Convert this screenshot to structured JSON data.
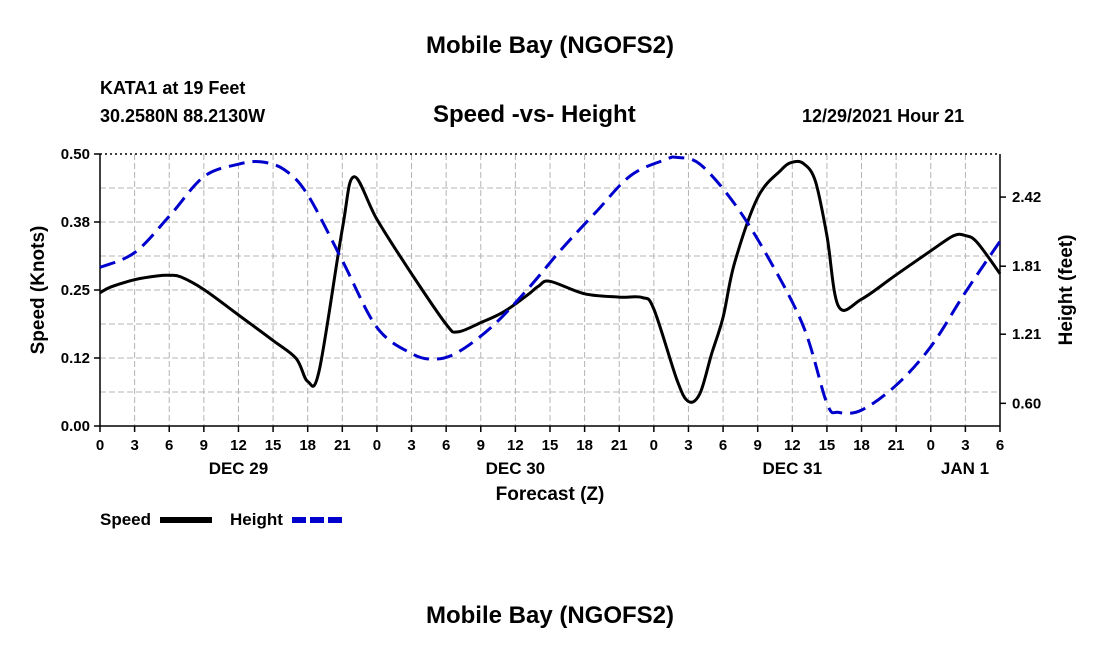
{
  "page": {
    "title": "Mobile Bay (NGOFS2)",
    "bottom_title": "Mobile Bay (NGOFS2)",
    "station": "KATA1 at 19 Feet",
    "coords": "30.2580N  88.2130W",
    "subtitle": "Speed -vs- Height",
    "datetime": "12/29/2021 Hour 21"
  },
  "colors": {
    "speed": "#000000",
    "height": "#0000cc",
    "grid": "#b4b4b4"
  },
  "chart_data": {
    "type": "line",
    "title": "Speed -vs- Height",
    "xlabel": "Forecast (Z)",
    "ylabel": "Speed (Knots)",
    "y2label": "Height (feet)",
    "xlim": [
      0,
      78
    ],
    "ylim": [
      0,
      0.5
    ],
    "y2lim": [
      0.4,
      2.8
    ],
    "x_ticks": [
      {
        "x": 0,
        "label": "0"
      },
      {
        "x": 3,
        "label": "3"
      },
      {
        "x": 6,
        "label": "6"
      },
      {
        "x": 9,
        "label": "9"
      },
      {
        "x": 12,
        "label": "12"
      },
      {
        "x": 15,
        "label": "15"
      },
      {
        "x": 18,
        "label": "18"
      },
      {
        "x": 21,
        "label": "21"
      },
      {
        "x": 24,
        "label": "0"
      },
      {
        "x": 27,
        "label": "3"
      },
      {
        "x": 30,
        "label": "6"
      },
      {
        "x": 33,
        "label": "9"
      },
      {
        "x": 36,
        "label": "12"
      },
      {
        "x": 39,
        "label": "15"
      },
      {
        "x": 42,
        "label": "18"
      },
      {
        "x": 45,
        "label": "21"
      },
      {
        "x": 48,
        "label": "0"
      },
      {
        "x": 51,
        "label": "3"
      },
      {
        "x": 54,
        "label": "6"
      },
      {
        "x": 57,
        "label": "9"
      },
      {
        "x": 60,
        "label": "12"
      },
      {
        "x": 63,
        "label": "15"
      },
      {
        "x": 66,
        "label": "18"
      },
      {
        "x": 69,
        "label": "21"
      },
      {
        "x": 72,
        "label": "0"
      },
      {
        "x": 75,
        "label": "3"
      },
      {
        "x": 78,
        "label": "6"
      }
    ],
    "date_labels": [
      {
        "x": 12,
        "label": "DEC 29"
      },
      {
        "x": 36,
        "label": "DEC 30"
      },
      {
        "x": 60,
        "label": "DEC 31"
      },
      {
        "x": 78,
        "label": "JAN 1"
      }
    ],
    "y_ticks": [
      {
        "value": 0.0,
        "label": "0.00"
      },
      {
        "value": 0.125,
        "label": "0.12"
      },
      {
        "value": 0.25,
        "label": "0.25"
      },
      {
        "value": 0.375,
        "label": "0.38"
      },
      {
        "value": 0.5,
        "label": "0.50"
      }
    ],
    "y2_ticks": [
      {
        "value": 0.6,
        "label": "0.60"
      },
      {
        "value": 1.21,
        "label": "1.21"
      },
      {
        "value": 1.81,
        "label": "1.81"
      },
      {
        "value": 2.42,
        "label": "2.42"
      }
    ],
    "series": [
      {
        "name": "Speed",
        "axis": "left",
        "style": "solid",
        "x": [
          0,
          1,
          3,
          5,
          6,
          7,
          9,
          12,
          15,
          17,
          18,
          19,
          21,
          22,
          24,
          27,
          30,
          31,
          33,
          35,
          37,
          38,
          39,
          42,
          45,
          47,
          48,
          50,
          51,
          52,
          53,
          54,
          55,
          57,
          59,
          60,
          61,
          62,
          63,
          64,
          66,
          69,
          72,
          74,
          75,
          76,
          78
        ],
        "values": [
          0.245,
          0.256,
          0.269,
          0.276,
          0.277,
          0.274,
          0.251,
          0.204,
          0.157,
          0.124,
          0.082,
          0.102,
          0.362,
          0.458,
          0.38,
          0.28,
          0.187,
          0.173,
          0.19,
          0.21,
          0.24,
          0.257,
          0.266,
          0.243,
          0.237,
          0.236,
          0.215,
          0.085,
          0.045,
          0.06,
          0.132,
          0.2,
          0.3,
          0.42,
          0.47,
          0.485,
          0.482,
          0.45,
          0.35,
          0.22,
          0.233,
          0.278,
          0.322,
          0.35,
          0.35,
          0.338,
          0.28
        ]
      },
      {
        "name": "Height",
        "axis": "right",
        "style": "dashed",
        "x": [
          0,
          3,
          6,
          9,
          12,
          14,
          16,
          18,
          21,
          24,
          27,
          29,
          31,
          34,
          37,
          40,
          43,
          46,
          49,
          50,
          52,
          55,
          58,
          61,
          63,
          64,
          66,
          69,
          72,
          75,
          78
        ],
        "values": [
          1.8,
          1.93,
          2.25,
          2.6,
          2.71,
          2.73,
          2.66,
          2.44,
          1.86,
          1.27,
          1.04,
          0.99,
          1.05,
          1.28,
          1.6,
          1.96,
          2.29,
          2.61,
          2.75,
          2.77,
          2.71,
          2.36,
          1.87,
          1.27,
          0.6,
          0.52,
          0.54,
          0.76,
          1.1,
          1.58,
          2.03
        ]
      }
    ],
    "legend": [
      {
        "name": "Speed"
      },
      {
        "name": "Height"
      }
    ],
    "legend_position": "bottom-left",
    "grid": true
  }
}
